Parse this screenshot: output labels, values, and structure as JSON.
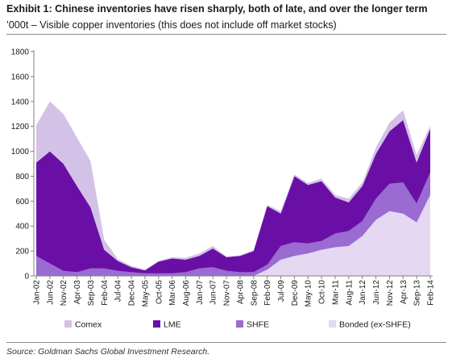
{
  "title": "Exhibit 1: Chinese inventories have risen sharply, both of late, and over the longer term",
  "subtitle": "’000t – Visible copper inventories (this does not include off market stocks)",
  "source": "Source: Goldman Sachs Global Investment Research.",
  "colors": {
    "comex": "#d4c1e8",
    "lme": "#6a0fa6",
    "shfe": "#9a6bd0",
    "bonded": "#e4d8f2",
    "axis": "#808080",
    "text": "#1a1a1a"
  },
  "chart_data": {
    "type": "area",
    "stacked": true,
    "title": "Exhibit 1: Chinese inventories have risen sharply, both of late, and over the longer term",
    "subtitle": "’000t – Visible copper inventories (this does not include off market stocks)",
    "ylim": [
      0,
      1800
    ],
    "yticks": [
      0,
      200,
      400,
      600,
      800,
      1000,
      1200,
      1400,
      1600,
      1800
    ],
    "grid": false,
    "legend_position": "bottom",
    "xtick_labels": [
      "Jan-02",
      "Jun-02",
      "Nov-02",
      "Apr-03",
      "Sep-03",
      "Feb-04",
      "Jul-04",
      "Dec-04",
      "May-05",
      "Oct-05",
      "Mar-06",
      "Aug-06",
      "Jan-07",
      "Jun-07",
      "Nov-07",
      "Apr-08",
      "Sep-08",
      "Feb-09",
      "Jul-09",
      "Dec-09",
      "May-10",
      "Oct-10",
      "Mar-11",
      "Aug-11",
      "Jan-12",
      "Jun-12",
      "Nov-12",
      "Apr-13",
      "Sep-13",
      "Feb-14"
    ],
    "x": [
      "Jan-02",
      "Jun-02",
      "Nov-02",
      "Apr-03",
      "Sep-03",
      "Feb-04",
      "Jul-04",
      "Dec-04",
      "May-05",
      "Oct-05",
      "Mar-06",
      "Aug-06",
      "Jan-07",
      "Jun-07",
      "Nov-07",
      "Apr-08",
      "Sep-08",
      "Feb-09",
      "Jul-09",
      "Dec-09",
      "May-10",
      "Oct-10",
      "Mar-11",
      "Aug-11",
      "Jan-12",
      "Jun-12",
      "Nov-12",
      "Apr-13",
      "Sep-13",
      "Feb-14"
    ],
    "series": [
      {
        "name": "Bonded (ex-SHFE)",
        "color": "#e4d8f2",
        "values": [
          0,
          0,
          0,
          0,
          0,
          0,
          0,
          0,
          0,
          0,
          0,
          0,
          0,
          0,
          0,
          0,
          0,
          50,
          130,
          160,
          180,
          210,
          230,
          240,
          320,
          450,
          520,
          500,
          430,
          650
        ]
      },
      {
        "name": "SHFE",
        "color": "#9a6bd0",
        "values": [
          160,
          100,
          40,
          30,
          60,
          60,
          40,
          30,
          20,
          20,
          20,
          30,
          60,
          70,
          40,
          30,
          30,
          40,
          110,
          110,
          80,
          70,
          110,
          120,
          120,
          170,
          220,
          250,
          150,
          180
        ]
      },
      {
        "name": "LME",
        "color": "#6a0fa6",
        "values": [
          750,
          900,
          860,
          690,
          490,
          150,
          80,
          40,
          25,
          95,
          120,
          100,
          100,
          150,
          110,
          130,
          170,
          470,
          260,
          530,
          470,
          480,
          290,
          230,
          280,
          360,
          420,
          500,
          330,
          350
        ]
      },
      {
        "name": "Comex",
        "color": "#d4c1e8",
        "values": [
          300,
          400,
          400,
          390,
          370,
          80,
          15,
          10,
          5,
          5,
          10,
          15,
          20,
          20,
          5,
          5,
          5,
          10,
          20,
          15,
          15,
          20,
          20,
          30,
          30,
          50,
          70,
          80,
          60,
          25
        ]
      }
    ],
    "legend": [
      "Comex",
      "LME",
      "SHFE",
      "Bonded (ex-SHFE)"
    ]
  }
}
